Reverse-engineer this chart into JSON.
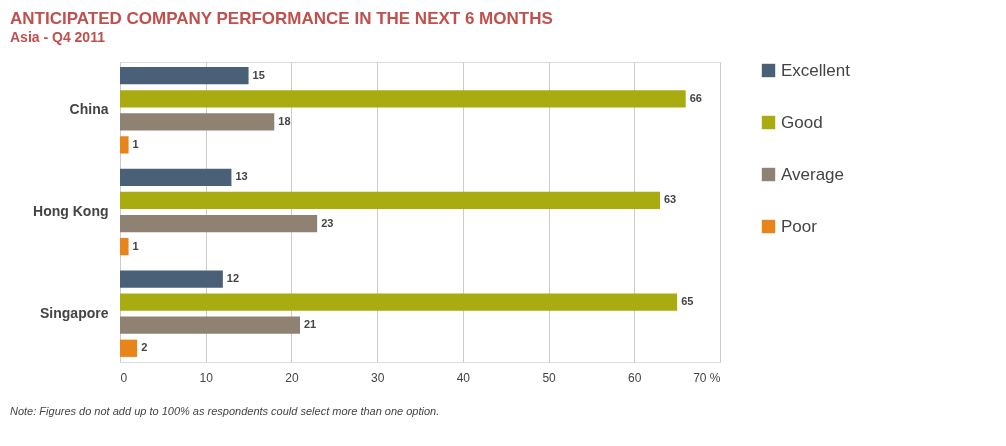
{
  "chart_data": {
    "type": "bar",
    "orientation": "horizontal",
    "title": "ANTICIPATED COMPANY PERFORMANCE IN THE NEXT 6 MONTHS",
    "subtitle": "Asia - Q4 2011",
    "categories": [
      "China",
      "Hong Kong",
      "Singapore"
    ],
    "series": [
      {
        "name": "Excellent",
        "color": "#4a6076",
        "values": [
          15,
          13,
          12
        ]
      },
      {
        "name": "Good",
        "color": "#a8ac10",
        "values": [
          66,
          63,
          65
        ]
      },
      {
        "name": "Average",
        "color": "#8f8273",
        "values": [
          18,
          23,
          21
        ]
      },
      {
        "name": "Poor",
        "color": "#e8851a",
        "values": [
          1,
          1,
          2
        ]
      }
    ],
    "xlim": [
      0,
      70
    ],
    "xticks": [
      0,
      10,
      20,
      30,
      40,
      50,
      60,
      {
        "value": 70,
        "label": "70  %"
      }
    ],
    "grid": "x",
    "legend": "right",
    "data_labels": true,
    "annotations": [
      "Note: Figures do not add up to 100% as respondents could select more than one option."
    ]
  }
}
